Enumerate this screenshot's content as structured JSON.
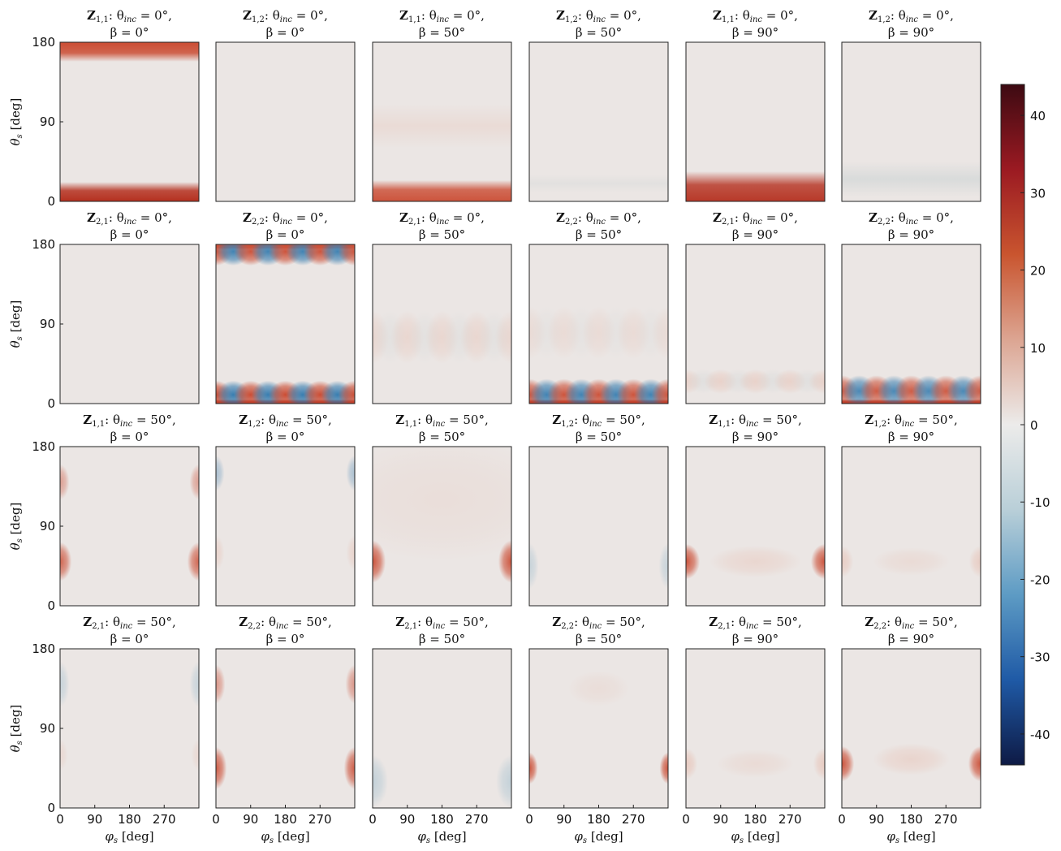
{
  "chart_data": {
    "type": "heatmap",
    "layout": {
      "rows": 4,
      "cols": 6
    },
    "xlabel_tex": "φ",
    "xlabel_sub": "s",
    "xlabel_unit": "[deg]",
    "ylabel_tex": "θ",
    "ylabel_sub": "s",
    "ylabel_unit": "[deg]",
    "xlim": [
      0,
      360
    ],
    "ylim": [
      0,
      180
    ],
    "xticks": [
      0,
      90,
      180,
      270
    ],
    "yticks": [
      0,
      90,
      180
    ],
    "colorbar": {
      "range": [
        -44,
        44
      ],
      "ticks": [
        40,
        30,
        20,
        10,
        0,
        -10,
        -20,
        -30,
        -40
      ],
      "colormap": [
        "#0e1a45",
        "#1f5aa6",
        "#5d9bc4",
        "#b9cfd8",
        "#ecebea",
        "#dca592",
        "#c9552f",
        "#9b1a22",
        "#3d0a12"
      ]
    },
    "panels": [
      {
        "z": "Z",
        "ij": "1,1",
        "theta_inc": "0°",
        "beta": "0°",
        "desc": "strong red bands at theta_s≈0 and ≈180"
      },
      {
        "z": "Z",
        "ij": "1,2",
        "theta_inc": "0°",
        "beta": "0°",
        "desc": "near zero"
      },
      {
        "z": "Z",
        "ij": "1,1",
        "theta_inc": "0°",
        "beta": "50°",
        "desc": "red band at theta_s≈0, faint band near 90"
      },
      {
        "z": "Z",
        "ij": "1,2",
        "theta_inc": "0°",
        "beta": "50°",
        "desc": "near zero"
      },
      {
        "z": "Z",
        "ij": "1,1",
        "theta_inc": "0°",
        "beta": "90°",
        "desc": "red band at theta_s≈0"
      },
      {
        "z": "Z",
        "ij": "1,2",
        "theta_inc": "0°",
        "beta": "90°",
        "desc": "faint grey band near theta_s≈20"
      },
      {
        "z": "Z",
        "ij": "2,1",
        "theta_inc": "0°",
        "beta": "0°",
        "desc": "near zero"
      },
      {
        "z": "Z",
        "ij": "2,2",
        "theta_inc": "0°",
        "beta": "0°",
        "desc": "alternating red/blue lobes at theta_s≈0 and ≈180"
      },
      {
        "z": "Z",
        "ij": "2,1",
        "theta_inc": "0°",
        "beta": "50°",
        "desc": "faint lobes"
      },
      {
        "z": "Z",
        "ij": "2,2",
        "theta_inc": "0°",
        "beta": "50°",
        "desc": "alternating lobes at theta_s≈0"
      },
      {
        "z": "Z",
        "ij": "2,1",
        "theta_inc": "0°",
        "beta": "90°",
        "desc": "faint alternating lobes near theta_s≈20"
      },
      {
        "z": "Z",
        "ij": "2,2",
        "theta_inc": "0°",
        "beta": "90°",
        "desc": "alternating lobes at theta_s≈0"
      },
      {
        "z": "Z",
        "ij": "1,1",
        "theta_inc": "50°",
        "beta": "0°",
        "desc": "red edges at phi_s≈0/360"
      },
      {
        "z": "Z",
        "ij": "1,2",
        "theta_inc": "50°",
        "beta": "0°",
        "desc": "faint blue/red edges"
      },
      {
        "z": "Z",
        "ij": "1,1",
        "theta_inc": "50°",
        "beta": "50°",
        "desc": "red edges near theta_s≈50"
      },
      {
        "z": "Z",
        "ij": "1,2",
        "theta_inc": "50°",
        "beta": "50°",
        "desc": "faint blue edges"
      },
      {
        "z": "Z",
        "ij": "1,1",
        "theta_inc": "50°",
        "beta": "90°",
        "desc": "red edges near theta_s≈50"
      },
      {
        "z": "Z",
        "ij": "1,2",
        "theta_inc": "50°",
        "beta": "90°",
        "desc": "faint red edges"
      },
      {
        "z": "Z",
        "ij": "2,1",
        "theta_inc": "50°",
        "beta": "0°",
        "desc": "faint blue edges"
      },
      {
        "z": "Z",
        "ij": "2,2",
        "theta_inc": "50°",
        "beta": "0°",
        "desc": "red edges"
      },
      {
        "z": "Z",
        "ij": "2,1",
        "theta_inc": "50°",
        "beta": "50°",
        "desc": "faint blue edges low"
      },
      {
        "z": "Z",
        "ij": "2,2",
        "theta_inc": "50°",
        "beta": "50°",
        "desc": "red edges near theta_s≈50"
      },
      {
        "z": "Z",
        "ij": "2,1",
        "theta_inc": "50°",
        "beta": "90°",
        "desc": "faint red edges"
      },
      {
        "z": "Z",
        "ij": "2,2",
        "theta_inc": "50°",
        "beta": "90°",
        "desc": "red edges near theta_s≈50"
      }
    ]
  }
}
